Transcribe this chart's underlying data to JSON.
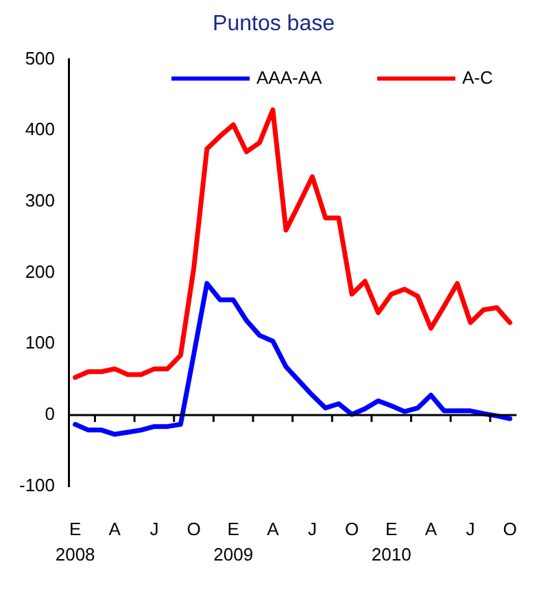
{
  "chart_data": {
    "type": "line",
    "title": "Puntos base",
    "categories": [
      "E",
      null,
      null,
      "A",
      null,
      null,
      "J",
      null,
      null,
      "O",
      null,
      null,
      "E",
      null,
      null,
      "A",
      null,
      null,
      "J",
      null,
      null,
      "O",
      null,
      null,
      "E",
      null,
      null,
      "A",
      null,
      null,
      "J",
      null,
      null,
      "O"
    ],
    "series": [
      {
        "name": "AAA-AA",
        "color": "#0000ff",
        "values": [
          -13,
          -21,
          -21,
          -27,
          -24,
          -21,
          -16,
          -16,
          -13,
          85,
          185,
          162,
          162,
          133,
          112,
          104,
          68,
          48,
          28,
          10,
          16,
          1,
          9,
          20,
          13,
          5,
          10,
          28,
          6,
          6,
          6,
          2,
          -1,
          -5
        ]
      },
      {
        "name": "A-C",
        "color": "#ff0000",
        "values": [
          53,
          61,
          61,
          65,
          57,
          57,
          65,
          65,
          84,
          206,
          374,
          392,
          408,
          370,
          383,
          429,
          260,
          297,
          335,
          277,
          277,
          170,
          188,
          144,
          170,
          177,
          167,
          122,
          153,
          185,
          130,
          148,
          151,
          130
        ]
      }
    ],
    "ylim": [
      -100,
      500
    ],
    "yticks": [
      -100,
      0,
      100,
      200,
      300,
      400,
      500
    ],
    "annotations": [
      "2008",
      "2009",
      "2010"
    ],
    "ref_lines": [
      {
        "axis": "y",
        "value": 0,
        "color": "#000000"
      }
    ],
    "legend": "top",
    "grid": false,
    "marker": "none",
    "line_style": "solid"
  }
}
